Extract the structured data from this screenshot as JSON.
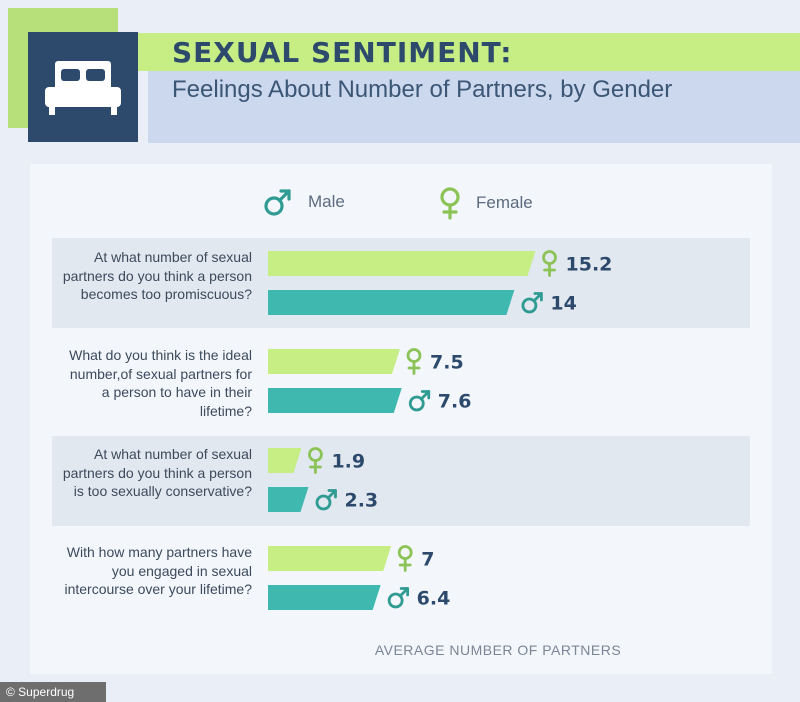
{
  "header": {
    "title": "SEXUAL SENTIMENT:",
    "subtitle": "Feelings About Number of Partners, by Gender",
    "icon": "bed-icon"
  },
  "legend": {
    "male_label": "Male",
    "female_label": "Female"
  },
  "colors": {
    "male": "#3fb8b0",
    "female": "#c6ee85",
    "navy": "#2d4a6c",
    "female_symbol": "#8cc356",
    "male_symbol": "#2f9b93"
  },
  "chart_data": {
    "type": "bar",
    "orientation": "horizontal",
    "xlabel": "AVERAGE NUMBER OF PARTNERS",
    "categories": [
      "At what number of sexual partners do you think a person becomes too promiscuous?",
      "What do you think is the ideal number,of sexual partners for a person to have in their lifetime?",
      "At what number of sexual partners do you think a person is too sexually conservative?",
      "With how many partners have you engaged in sexual intercourse over your lifetime?"
    ],
    "series": [
      {
        "name": "Female",
        "values": [
          15.2,
          7.5,
          1.9,
          7
        ]
      },
      {
        "name": "Male",
        "values": [
          14,
          7.6,
          2.3,
          6.4
        ]
      }
    ],
    "value_labels": {
      "Female": [
        "15.2",
        "7.5",
        "1.9",
        "7"
      ],
      "Male": [
        "14",
        "7.6",
        "2.3",
        "6.4"
      ]
    },
    "grid": false
  },
  "credit": "© Superdrug"
}
